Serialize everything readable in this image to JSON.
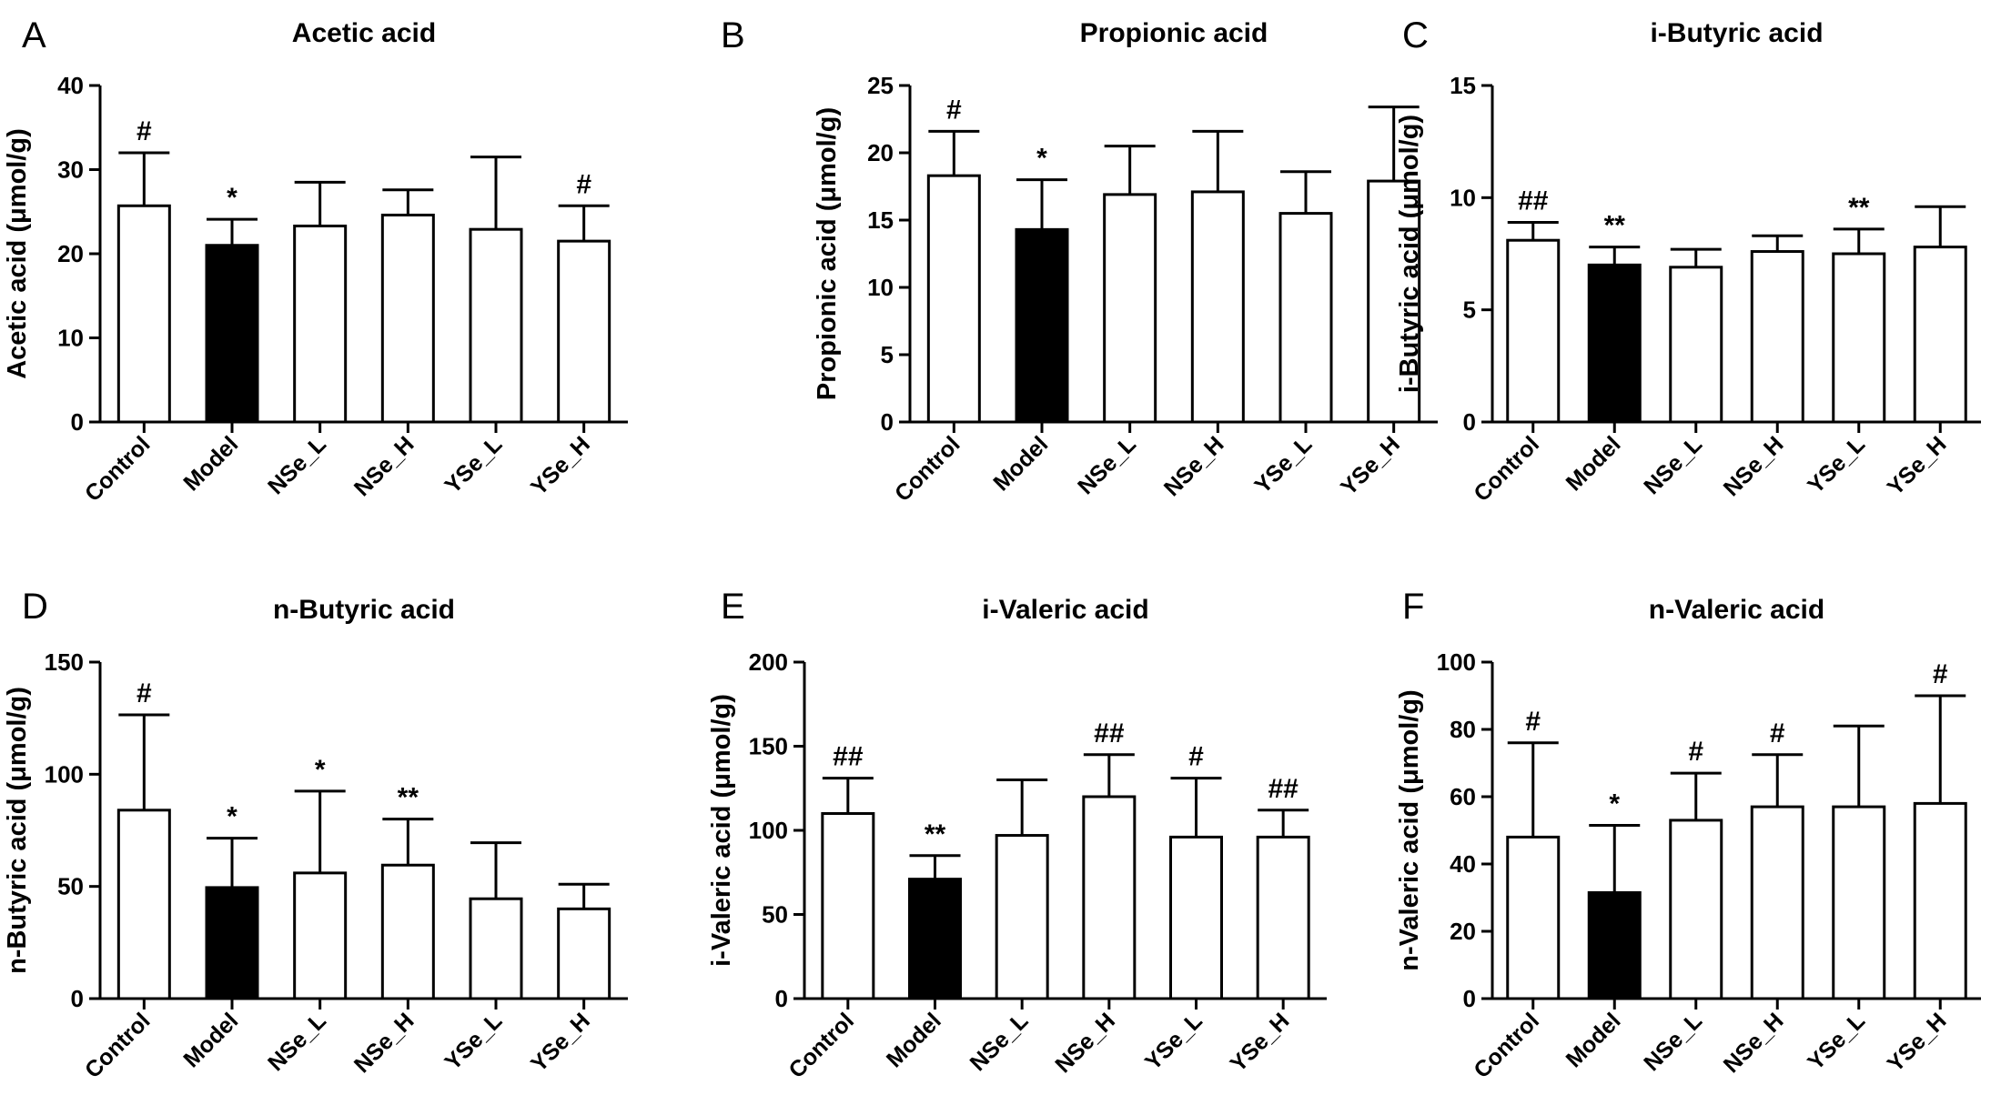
{
  "colors": {
    "model_fill": "#000000",
    "other_fill": "#ffffff",
    "stroke": "#000000"
  },
  "chart_data": [
    {
      "panel": "A",
      "type": "bar",
      "title": "Acetic acid",
      "ylabel": "Acetic acid (μmol/g)",
      "categories": [
        "Control",
        "Model",
        "NSe_L",
        "NSe_H",
        "YSe_L",
        "YSe_H"
      ],
      "values": [
        25.7,
        21.0,
        23.3,
        24.6,
        22.9,
        21.5
      ],
      "errors": [
        6.3,
        3.1,
        5.2,
        3.0,
        8.6,
        4.2
      ],
      "annotations": [
        "#",
        "*",
        "",
        "",
        "",
        "#"
      ],
      "ylim": [
        0,
        40
      ],
      "yticks": [
        "0",
        "10",
        "20",
        "30",
        "40"
      ]
    },
    {
      "panel": "B",
      "type": "bar",
      "title": "Propionic acid",
      "ylabel": "Propionic acid (μmol/g)",
      "categories": [
        "Control",
        "Model",
        "NSe_L",
        "NSe_H",
        "YSe_L",
        "YSe_H"
      ],
      "values": [
        18.3,
        14.3,
        16.9,
        17.1,
        15.5,
        17.9
      ],
      "errors": [
        3.3,
        3.7,
        3.6,
        4.5,
        3.1,
        5.5
      ],
      "annotations": [
        "#",
        "*",
        "",
        "",
        "",
        ""
      ],
      "ylim": [
        0,
        25
      ],
      "yticks": [
        "0",
        "5",
        "10",
        "15",
        "20",
        "25"
      ]
    },
    {
      "panel": "C",
      "type": "bar",
      "title": "i-Butyric acid",
      "ylabel": "i-Butyric acid (μmol/g)",
      "categories": [
        "Control",
        "Model",
        "NSe_L",
        "NSe_H",
        "YSe_L",
        "YSe_H"
      ],
      "values": [
        8.1,
        7.0,
        6.9,
        7.6,
        7.5,
        7.8
      ],
      "errors": [
        0.8,
        0.8,
        0.8,
        0.7,
        1.1,
        1.8
      ],
      "annotations": [
        "##",
        "**",
        "",
        "",
        "**",
        ""
      ],
      "ylim": [
        0,
        15
      ],
      "yticks": [
        "0",
        "5",
        "10",
        "15"
      ]
    },
    {
      "panel": "D",
      "type": "bar",
      "title": "n-Butyric acid",
      "ylabel": "n-Butyric acid (μmol/g)",
      "categories": [
        "Control",
        "Model",
        "NSe_L",
        "NSe_H",
        "YSe_L",
        "YSe_H"
      ],
      "values": [
        84,
        49.5,
        56,
        59.5,
        44.5,
        40
      ],
      "errors": [
        42.5,
        22,
        36.5,
        20.5,
        25,
        11
      ],
      "annotations": [
        "#",
        "*",
        "*",
        "**",
        "",
        ""
      ],
      "ylim": [
        0,
        150
      ],
      "yticks": [
        "0",
        "50",
        "100",
        "150"
      ]
    },
    {
      "panel": "E",
      "type": "bar",
      "title": "i-Valeric acid",
      "ylabel": "i-Valeric acid (μmol/g)",
      "categories": [
        "Control",
        "Model",
        "NSe_L",
        "NSe_H",
        "YSe_L",
        "YSe_H"
      ],
      "values": [
        110,
        71,
        97,
        120,
        96,
        96
      ],
      "errors": [
        21,
        14,
        33,
        25,
        35,
        16
      ],
      "annotations": [
        "##",
        "**",
        "",
        "##",
        "#",
        "##"
      ],
      "ylim": [
        0,
        200
      ],
      "yticks": [
        "0",
        "50",
        "100",
        "150",
        "200"
      ]
    },
    {
      "panel": "F",
      "type": "bar",
      "title": "n-Valeric acid",
      "ylabel": "n-Valeric acid (μmol/g)",
      "categories": [
        "Control",
        "Model",
        "NSe_L",
        "NSe_H",
        "YSe_L",
        "YSe_H"
      ],
      "values": [
        48,
        31.5,
        53,
        57,
        57,
        58
      ],
      "errors": [
        28,
        20,
        14,
        15.5,
        24,
        32
      ],
      "annotations": [
        "#",
        "*",
        "#",
        "#",
        "",
        "#"
      ],
      "ylim": [
        0,
        100
      ],
      "yticks": [
        "0",
        "20",
        "40",
        "60",
        "80",
        "100"
      ]
    }
  ]
}
